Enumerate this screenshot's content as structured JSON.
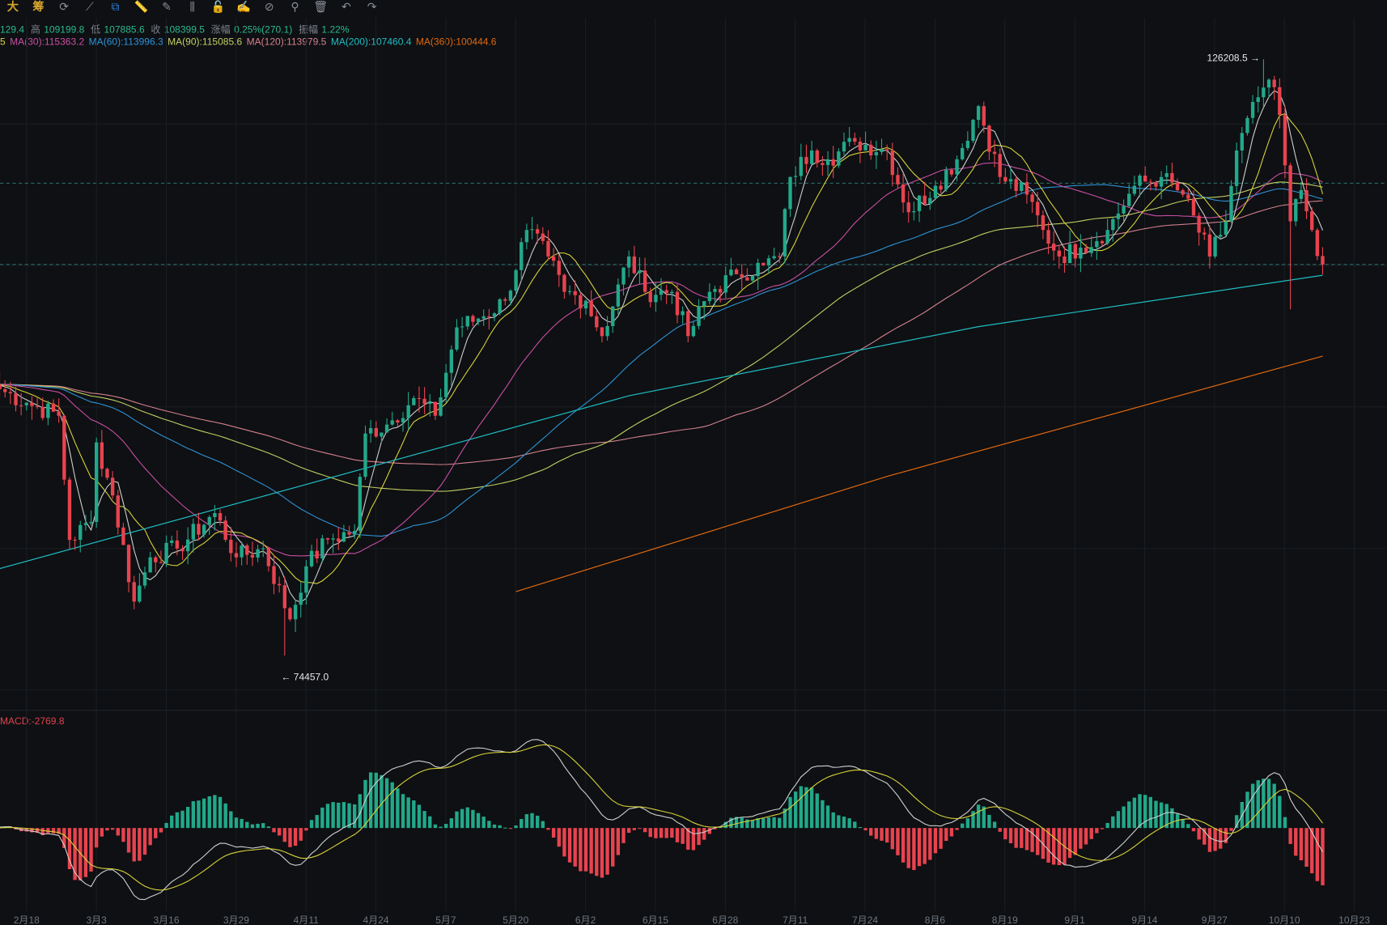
{
  "toolbar": {
    "items": [
      {
        "label": "大",
        "icon": "large-text-icon"
      },
      {
        "label": "筹",
        "icon": "chip-distribution-icon"
      },
      {
        "label": "⟳",
        "icon": "refresh-icon"
      },
      {
        "label": "⟋",
        "icon": "trendline-icon"
      },
      {
        "label": "⧉",
        "icon": "magnet-copy-icon",
        "selected": true
      },
      {
        "label": "📏",
        "icon": "ruler-icon"
      },
      {
        "label": "✎",
        "icon": "pen-icon"
      },
      {
        "label": "⫼",
        "icon": "fibonacci-icon"
      },
      {
        "label": "🔓",
        "icon": "unlock-icon"
      },
      {
        "label": "✍",
        "icon": "edit-note-icon"
      },
      {
        "label": "⊘",
        "icon": "magnet-icon"
      },
      {
        "label": "⚲",
        "icon": "filter-icon"
      },
      {
        "label": "🗑",
        "icon": "trash-icon"
      },
      {
        "label": "↶",
        "icon": "undo-icon"
      },
      {
        "label": "↷",
        "icon": "redo-icon"
      }
    ]
  },
  "ohlc_info": {
    "open_partial": "129.4",
    "high_label": "高",
    "high": "109199.8",
    "low_label": "低",
    "low": "107885.6",
    "close_label": "收",
    "close": "108399.5",
    "change_label": "涨幅",
    "change": "0.25%(270.1)",
    "amplitude_label": "振幅",
    "amplitude": "1.22%"
  },
  "ma_legend": [
    {
      "text": "5",
      "color": "#d8d23a"
    },
    {
      "text": "MA(30):115363.2",
      "color": "#c94fa3"
    },
    {
      "text": "MA(60):113996.3",
      "color": "#2f93d6"
    },
    {
      "text": "MA(90):115085.6",
      "color": "#c3cf62"
    },
    {
      "text": "MA(120):113979.5",
      "color": "#d5808f"
    },
    {
      "text": "MA(200):107460.4",
      "color": "#1fbdc4"
    },
    {
      "text": "MA(360):100444.6",
      "color": "#e2680f"
    }
  ],
  "macd_label": "MACD:-2769.8",
  "colors": {
    "up": "#22a88a",
    "down": "#e8434f",
    "ma5": "#cfcfcf",
    "ma10": "#d8d23a",
    "ma30": "#c94fa3",
    "ma60": "#2f93d6",
    "ma90": "#c3cf62",
    "ma120": "#d5808f",
    "ma200": "#1fbdc4",
    "ma360": "#e2680f",
    "dif": "#d0d0d0",
    "dea": "#d8d23a",
    "dashed": "#3fb6a8"
  },
  "chart_data": {
    "type": "candlestick",
    "x_start": "02-13",
    "x_end": "10-17",
    "xtick_labels": [
      "2月18",
      "3月3",
      "3月16",
      "3月29",
      "4月11",
      "4月24",
      "5月7",
      "5月20",
      "6月2",
      "6月15",
      "6月28",
      "7月11",
      "7月24",
      "8月6",
      "8月19",
      "9月1",
      "9月14",
      "9月27",
      "10月10",
      "10月23"
    ],
    "max_label": "126208.5",
    "max_value": 126208.5,
    "max_date": "10-06",
    "min_label": "74457.0",
    "min_value": 74457.0,
    "min_date": "04-07",
    "dashed_levels": [
      115460,
      108399.5
    ],
    "approx_closes": [
      [
        "02-13",
        97570
      ],
      [
        "02-18",
        96400
      ],
      [
        "02-24",
        95270
      ],
      [
        "02-26",
        84500
      ],
      [
        "03-02",
        86050
      ],
      [
        "03-03",
        92960
      ],
      [
        "03-06",
        88350
      ],
      [
        "03-10",
        79140
      ],
      [
        "03-13",
        82980
      ],
      [
        "03-18",
        83750
      ],
      [
        "03-25",
        86820
      ],
      [
        "03-29",
        82980
      ],
      [
        "04-03",
        83750
      ],
      [
        "04-08",
        77600
      ],
      [
        "04-11",
        82200
      ],
      [
        "04-15",
        84520
      ],
      [
        "04-20",
        85280
      ],
      [
        "04-22",
        93730
      ],
      [
        "04-26",
        94500
      ],
      [
        "05-01",
        96800
      ],
      [
        "05-05",
        95270
      ],
      [
        "05-09",
        102940
      ],
      [
        "05-13",
        103700
      ],
      [
        "05-18",
        105250
      ],
      [
        "05-22",
        111390
      ],
      [
        "05-26",
        109090
      ],
      [
        "05-29",
        106020
      ],
      [
        "06-02",
        105250
      ],
      [
        "06-05",
        102180
      ],
      [
        "06-10",
        109090
      ],
      [
        "06-13",
        106020
      ],
      [
        "06-18",
        106020
      ],
      [
        "06-21",
        102180
      ],
      [
        "06-25",
        106020
      ],
      [
        "06-30",
        107550
      ],
      [
        "07-05",
        108320
      ],
      [
        "07-08",
        109090
      ],
      [
        "07-10",
        115990
      ],
      [
        "07-14",
        118290
      ],
      [
        "07-17",
        117530
      ],
      [
        "07-22",
        119060
      ],
      [
        "07-28",
        118290
      ],
      [
        "08-01",
        112930
      ],
      [
        "08-06",
        115230
      ],
      [
        "08-10",
        117530
      ],
      [
        "08-14",
        122140
      ],
      [
        "08-18",
        115990
      ],
      [
        "08-23",
        114460
      ],
      [
        "08-26",
        111390
      ],
      [
        "08-29",
        109090
      ],
      [
        "09-02",
        109860
      ],
      [
        "09-07",
        111390
      ],
      [
        "09-12",
        115230
      ],
      [
        "09-17",
        115990
      ],
      [
        "09-21",
        114460
      ],
      [
        "09-26",
        109090
      ],
      [
        "09-29",
        112140
      ],
      [
        "10-01",
        118290
      ],
      [
        "10-05",
        122910
      ],
      [
        "10-07",
        124440
      ],
      [
        "10-09",
        121370
      ],
      [
        "10-11",
        112140
      ],
      [
        "10-13",
        114850
      ],
      [
        "10-15",
        111390
      ],
      [
        "10-17",
        108399.5
      ]
    ],
    "ma200_line": [
      [
        "02-13",
        82000
      ],
      [
        "06-10",
        97000
      ],
      [
        "08-14",
        103000
      ],
      [
        "10-17",
        107460.4
      ]
    ],
    "ma360_line": [
      [
        "05-20",
        80000
      ],
      [
        "07-28",
        90000
      ],
      [
        "10-17",
        100444.6
      ]
    ]
  }
}
